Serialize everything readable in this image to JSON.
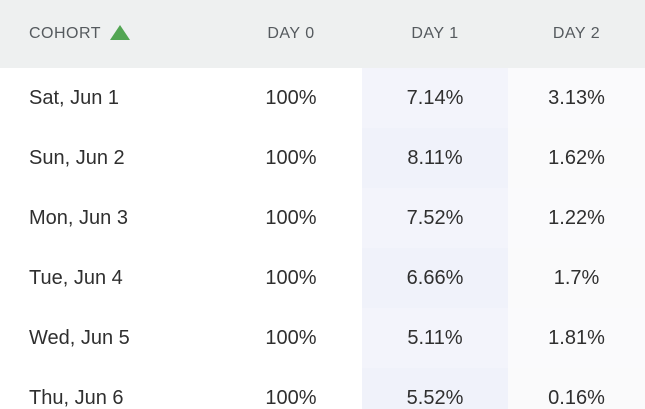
{
  "header": {
    "cohort": "COHORT",
    "day0": "DAY 0",
    "day1": "DAY 1",
    "day2": "DAY 2"
  },
  "rows": [
    {
      "cohort": "Sat, Jun 1",
      "day0": "100%",
      "day1": "7.14%",
      "day2": "3.13%"
    },
    {
      "cohort": "Sun, Jun 2",
      "day0": "100%",
      "day1": "8.11%",
      "day2": "1.62%"
    },
    {
      "cohort": "Mon, Jun 3",
      "day0": "100%",
      "day1": "7.52%",
      "day2": "1.22%"
    },
    {
      "cohort": "Tue, Jun 4",
      "day0": "100%",
      "day1": "6.66%",
      "day2": "1.7%"
    },
    {
      "cohort": "Wed, Jun 5",
      "day0": "100%",
      "day1": "5.11%",
      "day2": "1.81%"
    },
    {
      "cohort": "Thu, Jun 6",
      "day0": "100%",
      "day1": "5.52%",
      "day2": "0.16%"
    }
  ],
  "colors": {
    "header_bg": "#eef0f0",
    "sort_icon": "#52a552",
    "day1_tint": "#f3f4fb"
  },
  "icons": {
    "sort": "sort-ascending-icon"
  }
}
